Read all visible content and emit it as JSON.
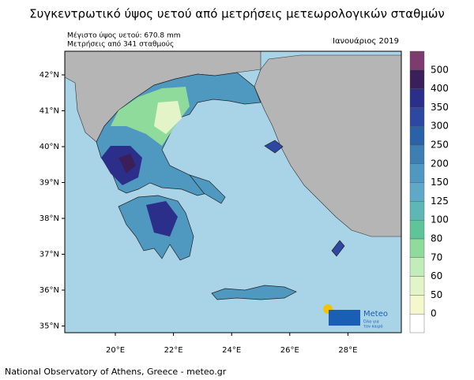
{
  "title": "Συγκεντρωτικό ύψος υετού από μετρήσεις μετεωρολογικών σταθμών",
  "info": {
    "max": "Μέγιστο ύψος υετού: 670.8 mm",
    "stations": "Μετρήσεις από 341 σταθμούς"
  },
  "date": "Ιανουάριος 2019",
  "lat_ticks": [
    "42°N",
    "41°N",
    "40°N",
    "39°N",
    "38°N",
    "37°N",
    "36°N",
    "35°N"
  ],
  "lon_ticks": [
    "20°E",
    "22°E",
    "24°E",
    "26°E",
    "28°E"
  ],
  "colorbar": {
    "colors": [
      "#7d3c6e",
      "#3a1f5a",
      "#2b2f8a",
      "#2e47a0",
      "#2a62a8",
      "#3d7fb3",
      "#4f98c0",
      "#5fa9c8",
      "#5db8b3",
      "#5ec59b",
      "#8edb9c",
      "#c3ecbb",
      "#e3f5c8",
      "#f4f8cc",
      "#ffffff"
    ],
    "labels": [
      "500",
      "400",
      "350",
      "300",
      "250",
      "200",
      "150",
      "125",
      "100",
      "80",
      "70",
      "60",
      "50",
      "0"
    ]
  },
  "logo": {
    "name": "Meteo",
    "tagline1": "Όλα για",
    "tagline2": "τον καιρό"
  },
  "footer": "National Observatory of Athens, Greece - meteo.gr"
}
